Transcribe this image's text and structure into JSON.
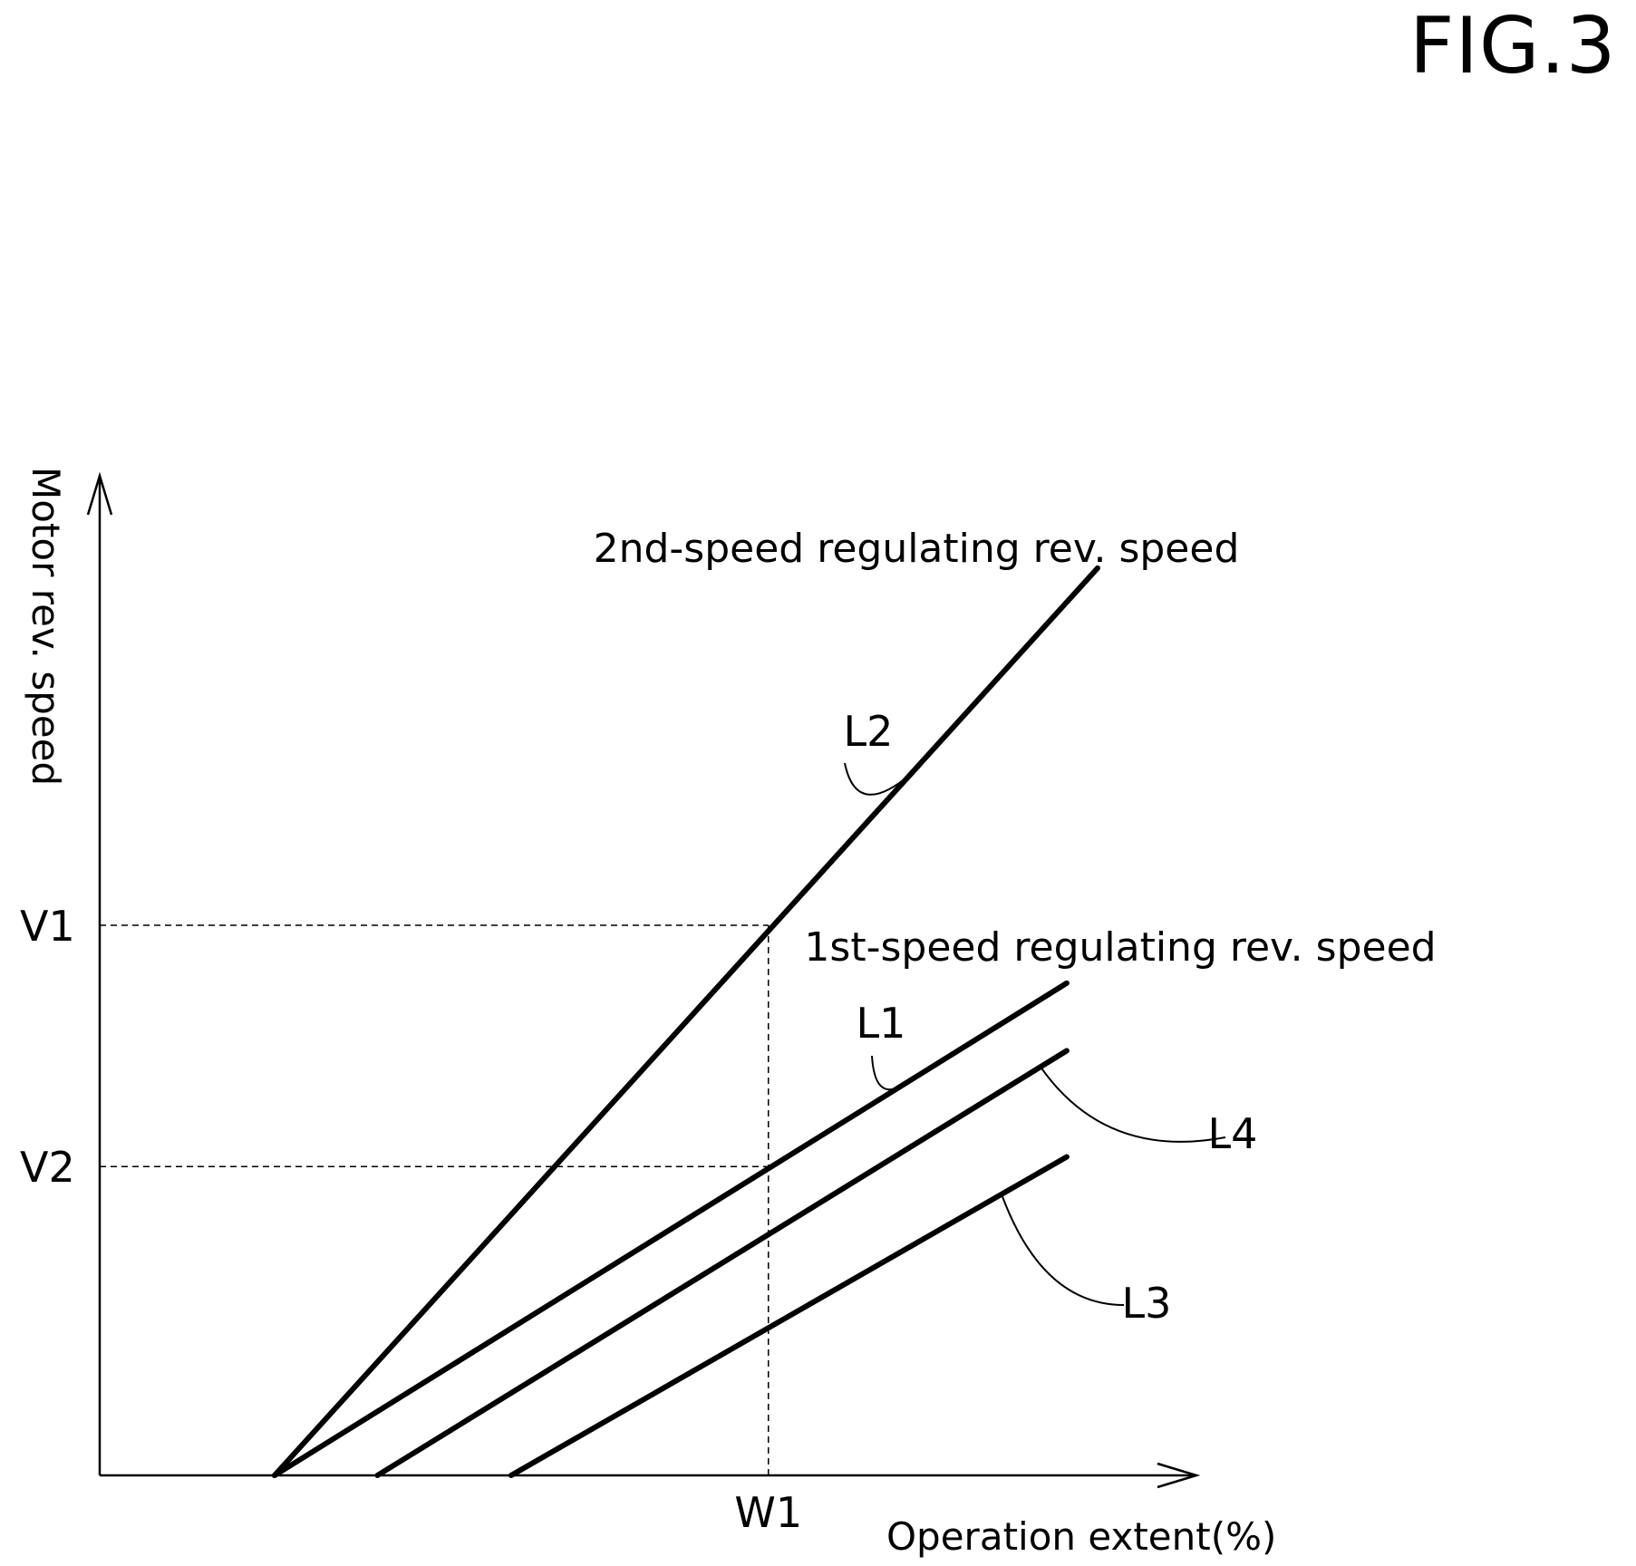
{
  "figure_label": "FIG.3",
  "chart_data": {
    "type": "line",
    "title": "",
    "xlabel": "Operation extent(%)",
    "ylabel": "Motor rev. speed",
    "xlim": [
      0,
      100
    ],
    "ylim": [
      0,
      100
    ],
    "x_ticks": [
      {
        "label": "W1",
        "value": 65
      }
    ],
    "y_ticks": [
      {
        "label": "V1",
        "value": 57
      },
      {
        "label": "V2",
        "value": 32
      }
    ],
    "grid": false,
    "series": [
      {
        "name": "L2",
        "x": [
          17,
          97
        ],
        "y": [
          0,
          94
        ]
      },
      {
        "name": "L1",
        "x": [
          17,
          94
        ],
        "y": [
          0,
          51
        ]
      },
      {
        "name": "L4",
        "x": [
          27,
          94
        ],
        "y": [
          0,
          44
        ]
      },
      {
        "name": "L3",
        "x": [
          40,
          94
        ],
        "y": [
          0,
          33
        ]
      }
    ],
    "annotations": [
      {
        "text": "2nd-speed regulating rev. speed",
        "target": "L2"
      },
      {
        "text": "1st-speed regulating rev. speed",
        "target": "L1"
      }
    ]
  }
}
